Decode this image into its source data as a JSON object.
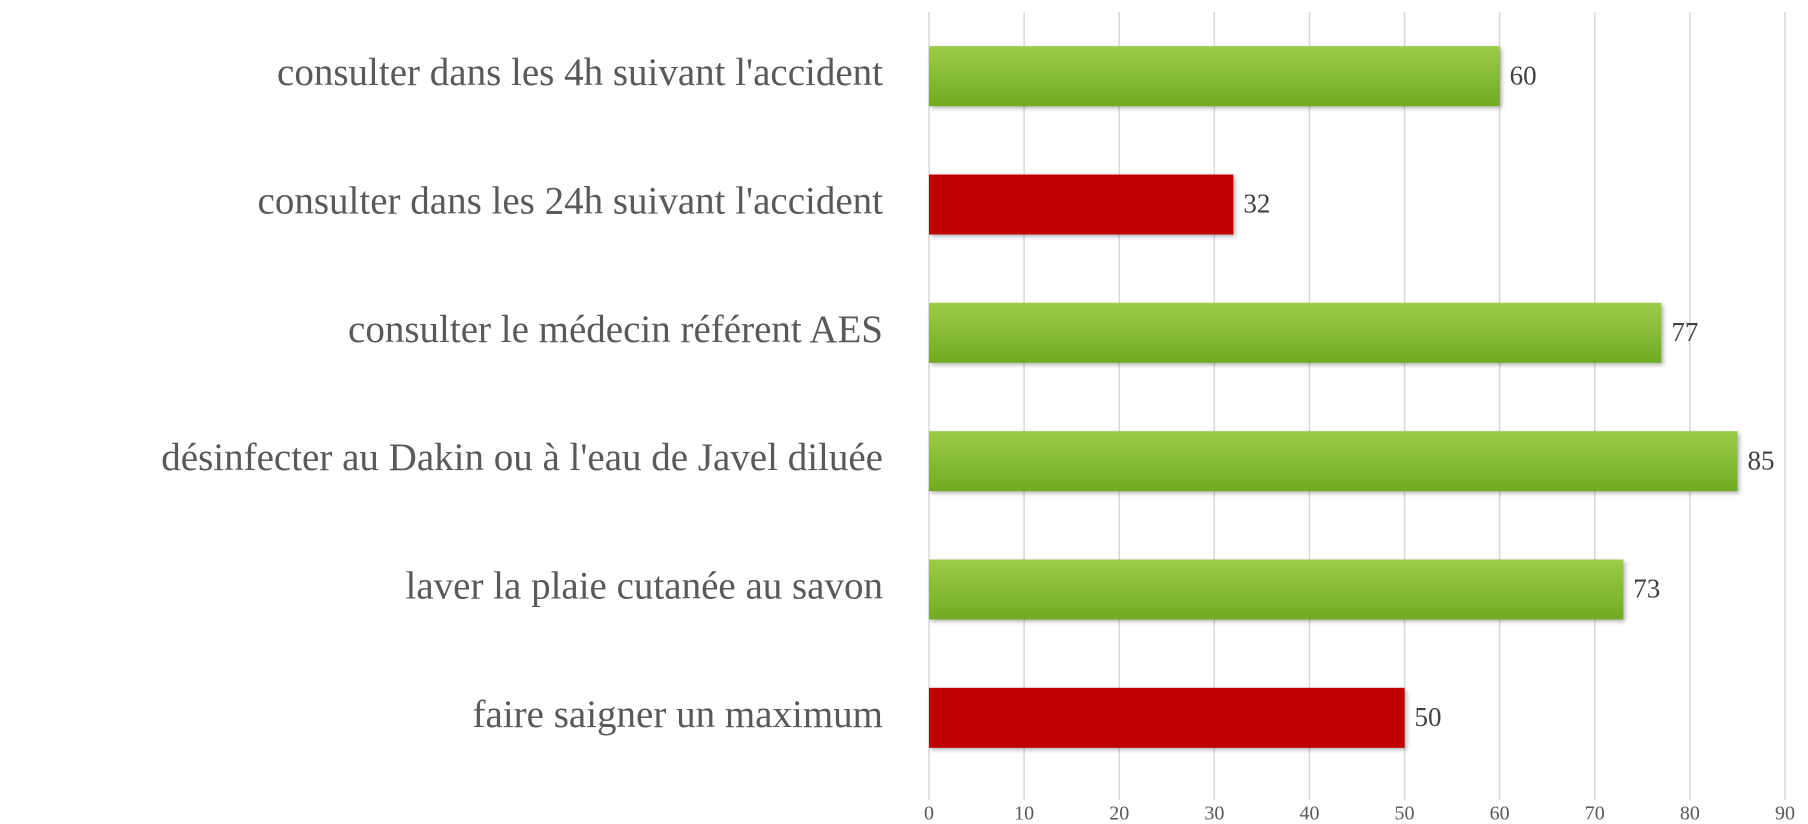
{
  "chart_data": {
    "type": "barh",
    "categories": [
      "consulter dans les 4h suivant l'accident",
      "consulter dans les 24h suivant l'accident",
      "consulter le médecin référent AES",
      "désinfecter au Dakin ou à l'eau de Javel diluée",
      "laver la plaie cutanée au savon",
      "faire saigner un maximum"
    ],
    "values": [
      60,
      32,
      77,
      85,
      73,
      50
    ],
    "colors": [
      "#7db52c",
      "#c00000",
      "#7db52c",
      "#7db52c",
      "#7db52c",
      "#c00000"
    ],
    "xlim": [
      0,
      90
    ],
    "xticks": [
      0,
      10,
      20,
      30,
      40,
      50,
      60,
      70,
      80,
      90
    ],
    "grid": true
  }
}
